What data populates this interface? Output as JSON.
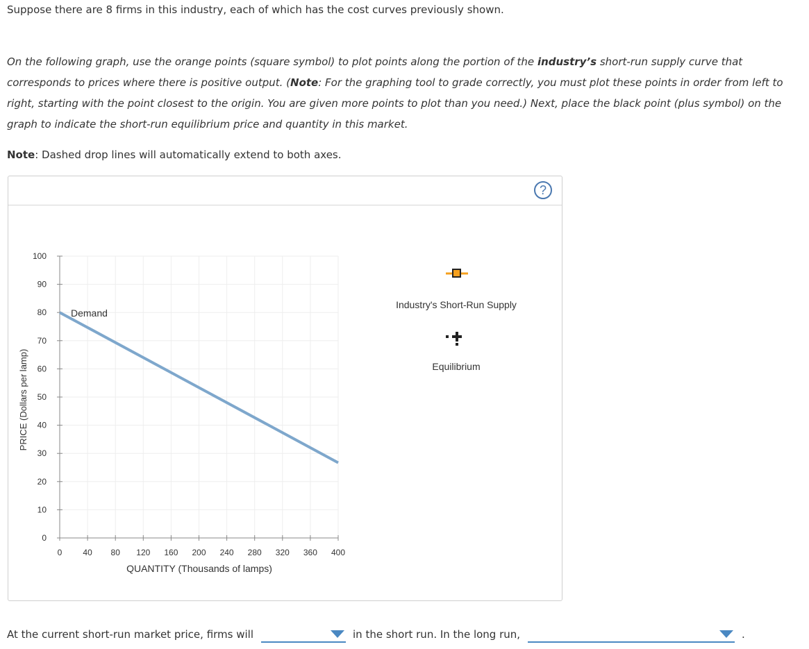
{
  "intro": "Suppose there are 8 firms in this industry, each of which has the cost curves previously shown.",
  "instructions": {
    "part1": "On the following graph, use the orange points (square symbol) to plot points along the portion of the ",
    "bold1": "industry’s",
    "part2": " short-run supply curve that corresponds to prices where there is positive output. (",
    "note_label": "Note",
    "part3": ": For the graphing tool to grade correctly, you must plot these points in order from left to right, starting with the point closest to the origin. You are given more points to plot than you need.) Next, place the black point (plus symbol) on the graph to indicate the short-run equilibrium price and quantity in this market."
  },
  "note": {
    "label": "Note",
    "text": ": Dashed drop lines will automatically extend to both axes."
  },
  "help": {
    "label": "?"
  },
  "graph": {
    "y_axis_label": "PRICE (Dollars per lamp)",
    "x_axis_label": "QUANTITY (Thousands of lamps)",
    "curve_label": "Demand"
  },
  "tools": {
    "supply_label": "Industry's Short-Run Supply",
    "equilibrium_label": "Equilibrium"
  },
  "colors": {
    "demand_line": "#7ea7cc",
    "supply_marker_fill": "#f5a01d",
    "grid": "#eeeeee",
    "axis": "#888888",
    "accent": "#4a88c2"
  },
  "chart_data": {
    "type": "line",
    "series": [
      {
        "name": "Demand",
        "x": [
          0,
          400
        ],
        "y": [
          80,
          26.7
        ]
      }
    ],
    "x_ticks": [
      0,
      40,
      80,
      120,
      160,
      200,
      240,
      280,
      320,
      360,
      400
    ],
    "y_ticks": [
      0,
      10,
      20,
      30,
      40,
      50,
      60,
      70,
      80,
      90,
      100
    ],
    "xlim": [
      0,
      400
    ],
    "ylim": [
      0,
      100
    ],
    "xlabel": "QUANTITY (Thousands of lamps)",
    "ylabel": "PRICE (Dollars per lamp)",
    "grid": true
  },
  "bottom": {
    "text1": "At the current short-run market price, firms will",
    "dropdown1_value": "",
    "text2": "in the short run. In the long run,",
    "dropdown2_value": "",
    "text3": "."
  }
}
